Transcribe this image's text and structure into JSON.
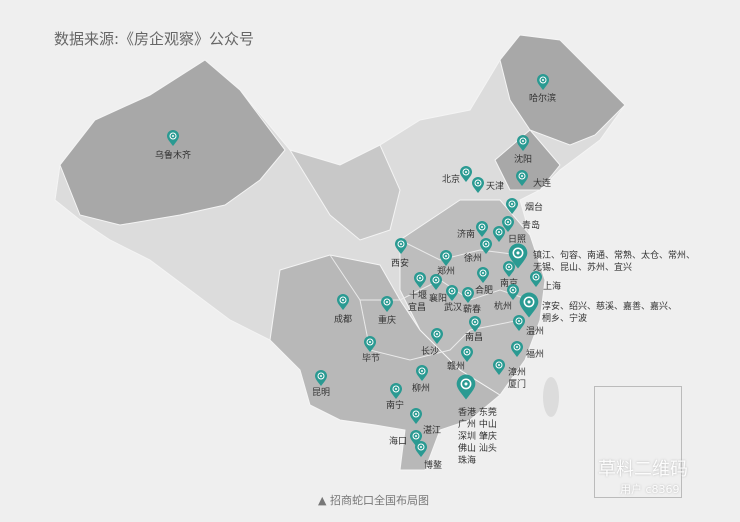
{
  "header": {
    "subtitle": "数据来源:《房企观察》公众号"
  },
  "caption": "▲ 招商蛇口全国布局图",
  "colors": {
    "pin": "#2a9a92",
    "map_dark": "#a8a8a8",
    "map_mid": "#bdbdbd",
    "map_light": "#dcdcdc",
    "background": "#efefef"
  },
  "cities": [
    {
      "label": "乌鲁木齐"
    },
    {
      "label": "哈尔滨"
    },
    {
      "label": "沈阳"
    },
    {
      "label": "北京"
    },
    {
      "label": "天津"
    },
    {
      "label": "大连"
    },
    {
      "label": "烟台"
    },
    {
      "label": "青岛"
    },
    {
      "label": "济南"
    },
    {
      "label": "日照"
    },
    {
      "label": "徐州"
    },
    {
      "label": "西安"
    },
    {
      "label": "郑州"
    },
    {
      "label": "镇江、句容、南通、常熟、太仓、常州、\n无锡、昆山、苏州、宜兴"
    },
    {
      "label": "南京"
    },
    {
      "label": "上海"
    },
    {
      "label": "十堰"
    },
    {
      "label": "襄阳"
    },
    {
      "label": "宜昌"
    },
    {
      "label": "合肥"
    },
    {
      "label": "武汉"
    },
    {
      "label": "蕲春"
    },
    {
      "label": "杭州"
    },
    {
      "label": "淳安、绍兴、慈溪、嘉善、嘉兴、\n桐乡、宁波"
    },
    {
      "label": "温州"
    },
    {
      "label": "成都"
    },
    {
      "label": "重庆"
    },
    {
      "label": "南昌"
    },
    {
      "label": "长沙"
    },
    {
      "label": "毕节"
    },
    {
      "label": "福州"
    },
    {
      "label": "赣州"
    },
    {
      "label": "柳州"
    },
    {
      "label": "漳州\n厦门"
    },
    {
      "label": "昆明"
    },
    {
      "label": "南宁"
    },
    {
      "label": "香港 东莞\n广州 中山\n深圳 肇庆\n佛山 汕头\n珠海"
    },
    {
      "label": "湛江"
    },
    {
      "label": "海口"
    },
    {
      "label": "博鳌"
    }
  ],
  "watermark": {
    "line1": "草料二维码",
    "line2": "用户 c8369"
  }
}
